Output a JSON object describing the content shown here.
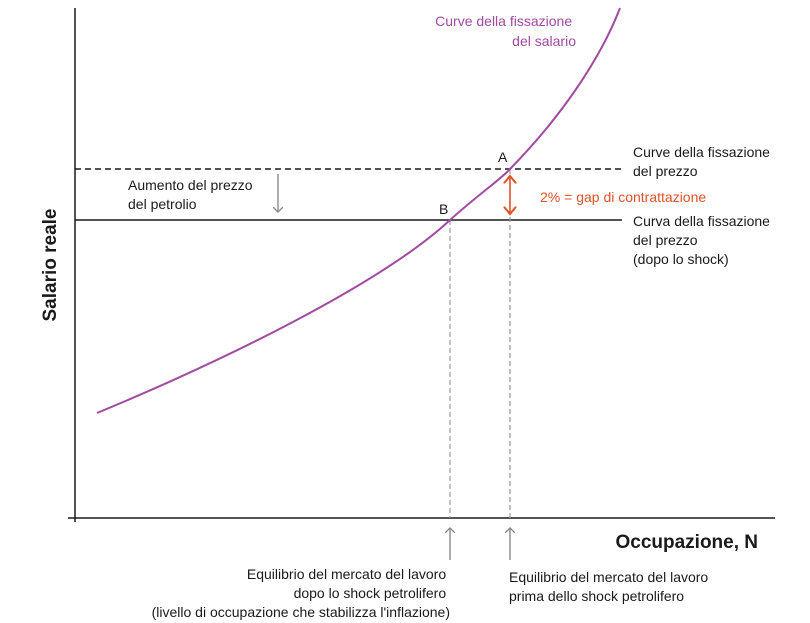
{
  "axes": {
    "y_title": "Salario reale",
    "x_title": "Occupazione, N"
  },
  "labels": {
    "wage_curve": [
      "Curve della fissazione",
      "del salario"
    ],
    "price_curve_before": [
      "Curve della fissazione",
      "del prezzo"
    ],
    "price_curve_after": [
      "Curva della fissazione",
      "del prezzo",
      "(dopo lo shock)"
    ],
    "oil_increase": [
      "Aumento del prezzo",
      "del petrolio"
    ],
    "gap": "2% = gap di contrattazione",
    "point_a": "A",
    "point_b": "B",
    "equilibrium_after": [
      "Equilibrio del mercato del lavoro",
      "dopo lo shock petrolifero",
      "(livello di occupazione che stabilizza l'inflazione)"
    ],
    "equilibrium_before": [
      "Equilibrio del mercato del lavoro",
      "prima dello shock petrolifero"
    ]
  },
  "colors": {
    "wage_curve": "#a04aa0",
    "gap": "#e0522a",
    "axis": "#1a1a1a",
    "guide": "#8a8a8a"
  }
}
